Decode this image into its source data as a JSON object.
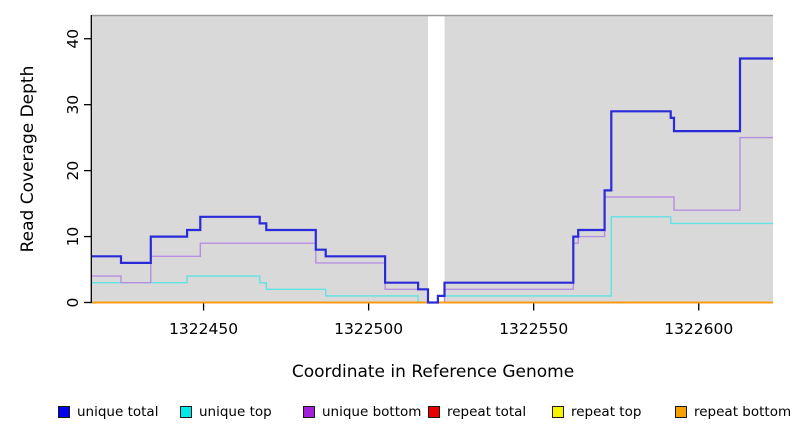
{
  "chart_data": {
    "type": "line",
    "step": true,
    "title": "",
    "xlabel": "Coordinate in Reference Genome",
    "ylabel": "Read Coverage Depth",
    "xlim": [
      1322416.2,
      1322622.5
    ],
    "ylim": [
      0,
      43.6
    ],
    "x_ticks": [
      1322450,
      1322500,
      1322550,
      1322600
    ],
    "y_ticks": [
      0,
      10,
      20,
      30,
      40
    ],
    "grid": false,
    "panel_color": "#d9d9d9",
    "panel_top_border_color": "#9a9a9a",
    "axis_color": "#000000",
    "gap_region": {
      "x_start": 1322518,
      "x_end": 1322523,
      "color": "#ffffff"
    },
    "legend_position": "bottom",
    "series": [
      {
        "name": "unique total",
        "color": "#2a2ad8",
        "legend_color": "#0000f0",
        "line_width": 2.2,
        "steps": [
          [
            1322416.2,
            7
          ],
          [
            1322425,
            6
          ],
          [
            1322434,
            10
          ],
          [
            1322445,
            11
          ],
          [
            1322449,
            13
          ],
          [
            1322467,
            12
          ],
          [
            1322469,
            11
          ],
          [
            1322484,
            8
          ],
          [
            1322487,
            7
          ],
          [
            1322505,
            3
          ],
          [
            1322515,
            2
          ],
          [
            1322518,
            0
          ],
          [
            1322521,
            1
          ],
          [
            1322523,
            3
          ],
          [
            1322562,
            10
          ],
          [
            1322563.5,
            11
          ],
          [
            1322571.5,
            17
          ],
          [
            1322573.5,
            29
          ],
          [
            1322591.5,
            28
          ],
          [
            1322592.5,
            26
          ],
          [
            1322612.5,
            37
          ]
        ]
      },
      {
        "name": "unique top",
        "color": "#5fe3e3",
        "legend_color": "#00e8e8",
        "line_width": 1.4,
        "steps": [
          [
            1322416.2,
            3
          ],
          [
            1322445,
            4
          ],
          [
            1322467,
            3
          ],
          [
            1322469,
            2
          ],
          [
            1322487,
            1
          ],
          [
            1322515,
            0
          ],
          [
            1322521,
            1
          ],
          [
            1322573.5,
            13
          ],
          [
            1322591.5,
            12
          ]
        ]
      },
      {
        "name": "unique bottom",
        "color": "#b78fe0",
        "legend_color": "#a021d8",
        "line_width": 1.4,
        "steps": [
          [
            1322416.2,
            4
          ],
          [
            1322425,
            3
          ],
          [
            1322434,
            7
          ],
          [
            1322449,
            9
          ],
          [
            1322484,
            6
          ],
          [
            1322505,
            2
          ],
          [
            1322518,
            0
          ],
          [
            1322523,
            2
          ],
          [
            1322562,
            9
          ],
          [
            1322563.5,
            10
          ],
          [
            1322571.5,
            16
          ],
          [
            1322592.5,
            14
          ],
          [
            1322612.5,
            25
          ]
        ]
      },
      {
        "name": "repeat total",
        "color": "#e00000",
        "legend_color": "#e80000",
        "line_width": 1.4,
        "steps": [
          [
            1322416.2,
            0
          ]
        ]
      },
      {
        "name": "repeat top",
        "color": "#f5f500",
        "legend_color": "#f5f500",
        "line_width": 1.4,
        "steps": [
          [
            1322416.2,
            0
          ]
        ]
      },
      {
        "name": "repeat bottom",
        "color": "#ff9810",
        "legend_color": "#f5a000",
        "line_width": 1.8,
        "steps": [
          [
            1322416.2,
            0
          ]
        ]
      }
    ]
  }
}
